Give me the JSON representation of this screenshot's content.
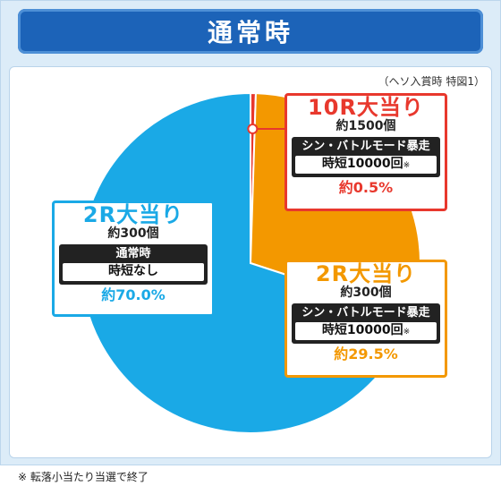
{
  "title": "通常時",
  "note": "（ヘソ入賞時 特図1）",
  "footnote": "※ 転落小当たり当選で終了",
  "colors": {
    "blue": "#1aa9e6",
    "orange": "#f39800",
    "red": "#e8382d",
    "title_bg": "#1c63b8"
  },
  "chart_data": {
    "type": "pie",
    "title": "通常時",
    "slices": [
      {
        "label": "10R大当り",
        "prize": "約1500個",
        "mode": "シン・バトルモード暴走",
        "result": "時短10000回",
        "result_mark": "※",
        "value": 0.5,
        "percent_label": "約0.5%",
        "color": "#e8382d"
      },
      {
        "label": "2R大当り",
        "prize": "約300個",
        "mode": "シン・バトルモード暴走",
        "result": "時短10000回",
        "result_mark": "※",
        "value": 29.5,
        "percent_label": "約29.5%",
        "color": "#f39800"
      },
      {
        "label": "2R大当り",
        "prize": "約300個",
        "mode": "通常時",
        "result": "時短なし",
        "result_mark": "",
        "value": 70.0,
        "percent_label": "約70.0%",
        "color": "#1aa9e6"
      }
    ]
  }
}
